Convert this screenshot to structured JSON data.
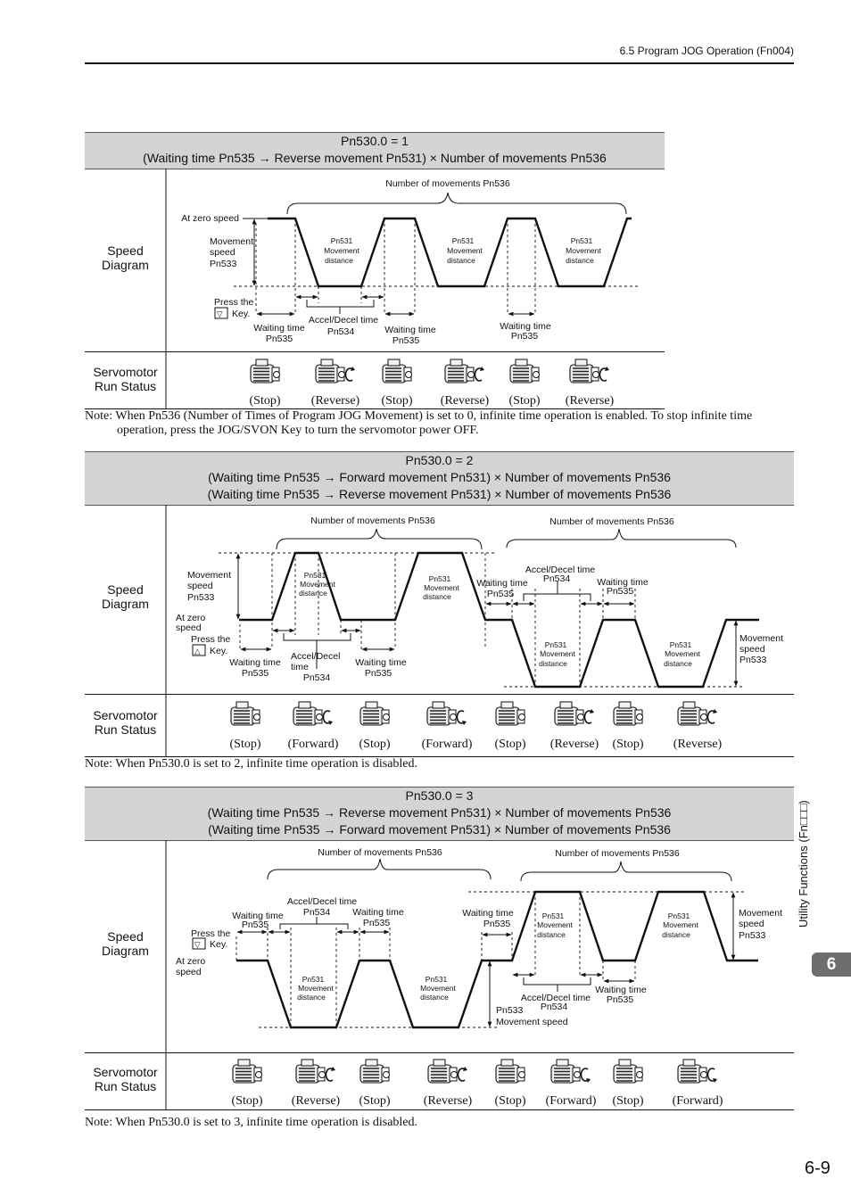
{
  "header": {
    "section_title": "6.5  Program JOG Operation (Fn004)"
  },
  "side_tab": {
    "label": "Utility Functions (Fn□□□)",
    "chapter": "6"
  },
  "page_number": "6-9",
  "row_labels": {
    "speed": "Speed",
    "diagram": "Diagram",
    "servomotor": "Servomotor",
    "run_status": "Run Status"
  },
  "dt": {
    "num_movements": "Number of movements Pn536",
    "at_zero_speed": "At zero speed",
    "at_zero": "At zero",
    "speed": "speed",
    "movement": "Movement",
    "pn533": "Pn533",
    "pn531": "Pn531",
    "distance": "distance",
    "press_the": "Press the",
    "key": "Key.",
    "key_down": "▽",
    "key_up": "△",
    "waiting_time": "Waiting time",
    "pn535": "Pn535",
    "accel_decel_time": "Accel/Decel time",
    "accel_decel": "Accel/Decel",
    "time": "time",
    "pn534": "Pn534",
    "movement_speed": "Movement speed"
  },
  "status": {
    "stop": "(Stop)",
    "reverse": "(Reverse)",
    "forward": "(Forward)"
  },
  "sections": [
    {
      "setting": "Pn530.0 = 1",
      "lines": [
        "(Waiting time Pn535 → Reverse movement Pn531) × Number of movements Pn536"
      ],
      "motors": [
        "stop",
        "reverse",
        "stop",
        "reverse",
        "stop",
        "reverse"
      ],
      "note": "Note: When Pn536 (Number of Times of Program JOG Movement) is set to 0, infinite time operation is enabled. To stop infinite time",
      "note2": "operation, press the JOG/SVON Key to turn the servomotor power OFF."
    },
    {
      "setting": "Pn530.0 = 2",
      "lines": [
        "(Waiting time Pn535 → Forward movement Pn531) × Number of movements Pn536",
        "(Waiting time Pn535 → Reverse movement Pn531) × Number of movements Pn536"
      ],
      "motors": [
        "stop",
        "forward",
        "stop",
        "forward",
        "stop",
        "reverse",
        "stop",
        "reverse"
      ],
      "note": "Note: When Pn530.0 is set to 2, infinite time operation is disabled."
    },
    {
      "setting": "Pn530.0 = 3",
      "lines": [
        "(Waiting time Pn535 → Reverse movement Pn531) × Number of movements Pn536",
        "(Waiting time Pn535 → Forward movement Pn531) × Number of movements Pn536"
      ],
      "motors": [
        "stop",
        "reverse",
        "stop",
        "reverse",
        "stop",
        "forward",
        "stop",
        "forward"
      ],
      "note": "Note: When Pn530.0 is set to 3, infinite time operation is disabled."
    }
  ]
}
